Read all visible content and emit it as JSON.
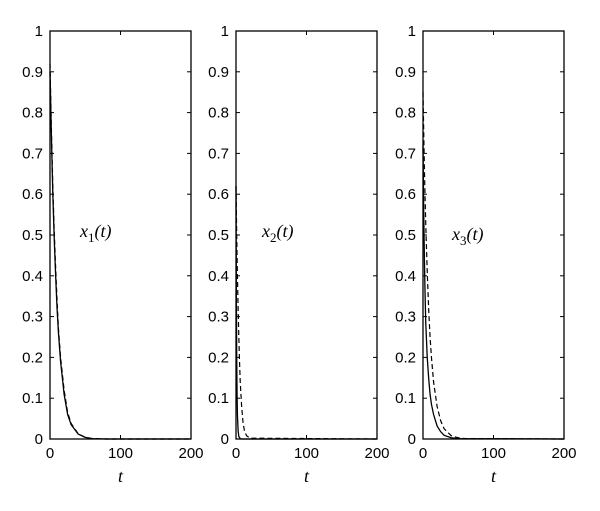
{
  "chart_data": [
    {
      "type": "line",
      "annotation": {
        "base": "x",
        "sub": "1",
        "arg": "(t)"
      },
      "xlabel": "t",
      "xlim": [
        0,
        200
      ],
      "ylim": [
        0,
        1
      ],
      "xticks": [
        "0",
        "100",
        "200"
      ],
      "yticks": [
        "0",
        "0.1",
        "0.2",
        "0.3",
        "0.4",
        "0.5",
        "0.6",
        "0.7",
        "0.8",
        "0.9",
        "1"
      ],
      "series": [
        {
          "style": "solid",
          "x": [
            0,
            2,
            4,
            6,
            8,
            10,
            12,
            15,
            20,
            25,
            30,
            40,
            50,
            60,
            80,
            200
          ],
          "y": [
            0.9,
            0.74,
            0.6,
            0.49,
            0.4,
            0.32,
            0.26,
            0.19,
            0.11,
            0.06,
            0.035,
            0.012,
            0.004,
            0.001,
            0,
            0
          ]
        },
        {
          "style": "dashed",
          "x": [
            0,
            2,
            4,
            6,
            8,
            10,
            12,
            15,
            20,
            25,
            30,
            40,
            50,
            60,
            80,
            200
          ],
          "y": [
            0.92,
            0.76,
            0.62,
            0.51,
            0.42,
            0.34,
            0.27,
            0.2,
            0.12,
            0.065,
            0.038,
            0.013,
            0.004,
            0.001,
            0,
            0
          ]
        }
      ]
    },
    {
      "type": "line",
      "annotation": {
        "base": "x",
        "sub": "2",
        "arg": "(t)"
      },
      "xlabel": "t",
      "xlim": [
        0,
        200
      ],
      "ylim": [
        0,
        1
      ],
      "xticks": [
        "0",
        "100",
        "200"
      ],
      "yticks": [
        "0",
        "0.1",
        "0.2",
        "0.3",
        "0.4",
        "0.5",
        "0.6",
        "0.7",
        "0.8",
        "0.9",
        "1"
      ],
      "series": [
        {
          "style": "solid",
          "x": [
            0,
            0.5,
            1,
            1.5,
            2,
            3,
            4,
            6,
            8,
            200
          ],
          "y": [
            0.62,
            0.35,
            0.2,
            0.11,
            0.06,
            0.02,
            0.006,
            0.001,
            0,
            0
          ]
        },
        {
          "style": "dashed",
          "x": [
            0,
            1,
            2,
            3,
            4,
            5,
            6,
            8,
            10,
            12,
            15,
            20,
            200
          ],
          "y": [
            0.62,
            0.5,
            0.4,
            0.32,
            0.25,
            0.19,
            0.14,
            0.08,
            0.04,
            0.02,
            0.008,
            0.002,
            0
          ]
        }
      ]
    },
    {
      "type": "line",
      "annotation": {
        "base": "x",
        "sub": "3",
        "arg": "(t)"
      },
      "xlabel": "t",
      "xlim": [
        0,
        200
      ],
      "ylim": [
        0,
        1
      ],
      "xticks": [
        "0",
        "100",
        "200"
      ],
      "yticks": [
        "0",
        "0.1",
        "0.2",
        "0.3",
        "0.4",
        "0.5",
        "0.6",
        "0.7",
        "0.8",
        "0.9",
        "1"
      ],
      "series": [
        {
          "style": "solid",
          "x": [
            0,
            1,
            2,
            3,
            4,
            6,
            8,
            10,
            12,
            15,
            20,
            25,
            30,
            40,
            50,
            200
          ],
          "y": [
            0.72,
            0.56,
            0.44,
            0.35,
            0.28,
            0.2,
            0.15,
            0.11,
            0.085,
            0.06,
            0.032,
            0.018,
            0.009,
            0.003,
            0.001,
            0
          ]
        },
        {
          "style": "dashed",
          "x": [
            0,
            2,
            4,
            6,
            8,
            10,
            12,
            15,
            20,
            25,
            30,
            40,
            50,
            60,
            200
          ],
          "y": [
            0.85,
            0.66,
            0.52,
            0.41,
            0.32,
            0.25,
            0.2,
            0.14,
            0.08,
            0.045,
            0.025,
            0.008,
            0.003,
            0.001,
            0
          ]
        }
      ]
    }
  ]
}
